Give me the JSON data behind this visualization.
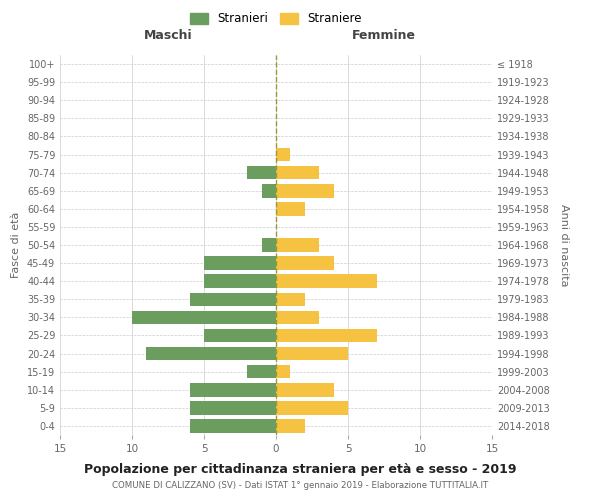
{
  "age_groups": [
    "0-4",
    "5-9",
    "10-14",
    "15-19",
    "20-24",
    "25-29",
    "30-34",
    "35-39",
    "40-44",
    "45-49",
    "50-54",
    "55-59",
    "60-64",
    "65-69",
    "70-74",
    "75-79",
    "80-84",
    "85-89",
    "90-94",
    "95-99",
    "100+"
  ],
  "birth_years": [
    "2014-2018",
    "2009-2013",
    "2004-2008",
    "1999-2003",
    "1994-1998",
    "1989-1993",
    "1984-1988",
    "1979-1983",
    "1974-1978",
    "1969-1973",
    "1964-1968",
    "1959-1963",
    "1954-1958",
    "1949-1953",
    "1944-1948",
    "1939-1943",
    "1934-1938",
    "1929-1933",
    "1924-1928",
    "1919-1923",
    "≤ 1918"
  ],
  "males": [
    6,
    6,
    6,
    2,
    9,
    5,
    10,
    6,
    5,
    5,
    1,
    0,
    0,
    1,
    2,
    0,
    0,
    0,
    0,
    0,
    0
  ],
  "females": [
    2,
    5,
    4,
    1,
    5,
    7,
    3,
    2,
    7,
    4,
    3,
    0,
    2,
    4,
    3,
    1,
    0,
    0,
    0,
    0,
    0
  ],
  "male_color": "#6b9e5e",
  "female_color": "#f5c242",
  "background_color": "#ffffff",
  "grid_color": "#cccccc",
  "title": "Popolazione per cittadinanza straniera per età e sesso - 2019",
  "subtitle": "COMUNE DI CALIZZANO (SV) - Dati ISTAT 1° gennaio 2019 - Elaborazione TUTTITALIA.IT",
  "xlabel_left": "Maschi",
  "xlabel_right": "Femmine",
  "ylabel_left": "Fasce di età",
  "ylabel_right": "Anni di nascita",
  "legend_male": "Stranieri",
  "legend_female": "Straniere",
  "xlim": 15,
  "dashed_line_color": "#999933"
}
